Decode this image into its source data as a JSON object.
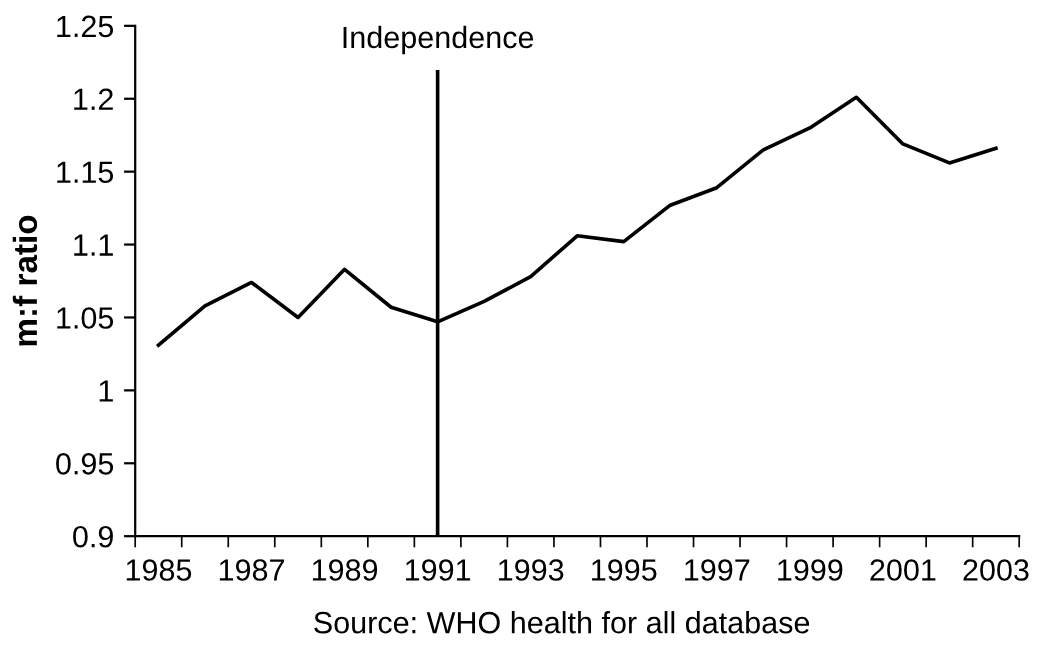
{
  "chart_data": {
    "type": "line",
    "ylabel": "m:f ratio",
    "categories": [
      "1985",
      null,
      "1987",
      null,
      "1989",
      null,
      "1991",
      null,
      "1993",
      null,
      "1995",
      null,
      "1997",
      null,
      "1999",
      null,
      "2001",
      null,
      "2003"
    ],
    "series": [
      {
        "color": "#000000",
        "values": [
          1.031,
          1.058,
          1.074,
          1.05,
          1.083,
          1.057,
          1.047,
          1.061,
          1.078,
          1.106,
          1.102,
          1.127,
          1.139,
          1.165,
          1.18,
          1.201,
          1.169,
          1.156,
          1.166
        ]
      }
    ],
    "ylim": [
      0.9,
      1.25
    ],
    "yticks": [
      0.9,
      0.95,
      1,
      1.05,
      1.1,
      1.15,
      1.2,
      1.25
    ],
    "ref_lines": [
      {
        "axis": "x",
        "value": "1991",
        "label": "Independence",
        "color": "#000000"
      }
    ],
    "annotations": [
      "Source: WHO health for all database"
    ],
    "grid": false,
    "legend": false,
    "marker": "none",
    "line_style": "solid"
  }
}
